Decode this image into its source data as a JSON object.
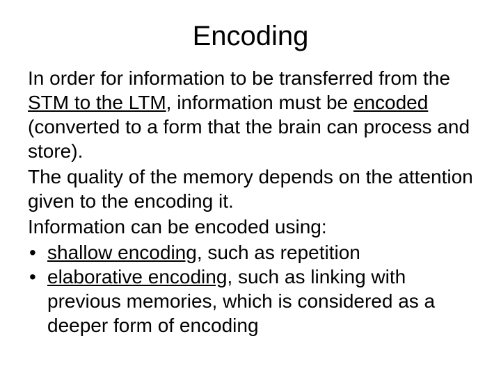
{
  "title": "Encoding",
  "colors": {
    "text": "#000000",
    "background": "#ffffff",
    "underline": "#000000"
  },
  "typography": {
    "title_fontsize": 40,
    "body_fontsize": 28,
    "font_family": "Arial"
  },
  "p1": {
    "t1": "In order for information to be transferred from the ",
    "stm": "STM to the LTM",
    "t2": ", information must be ",
    "enc": "encoded",
    "t3": " (converted to a form that the brain can process and store)."
  },
  "p2": "The quality of the memory depends on the attention given to the encoding it.",
  "p3": "Information can be encoded using:",
  "b1": {
    "u": "shallow encoding",
    "rest": ", such as repetition"
  },
  "b2": {
    "u": "elaborative encoding",
    "rest": ", such as linking with previous memories, which is considered as a deeper form of encoding"
  },
  "bullet_char": "•"
}
